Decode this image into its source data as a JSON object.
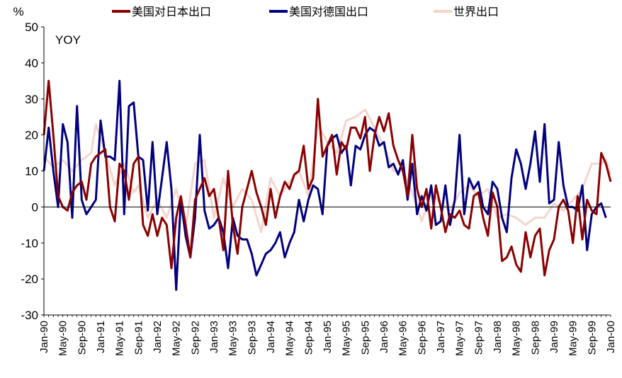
{
  "chart_data": {
    "type": "line",
    "ylabel": "%",
    "annotation": "YOY",
    "ylim": [
      -30,
      50
    ],
    "yticks": [
      "50",
      "40",
      "30",
      "20",
      "10",
      "0",
      "-10",
      "-20",
      "-30"
    ],
    "xtick_labels": [
      "Jan-90",
      "May-90",
      "Sep-90",
      "Jan-91",
      "May-91",
      "Sep-91",
      "Jan-92",
      "May-92",
      "Sep-92",
      "Jan-93",
      "May-93",
      "Sep-93",
      "Jan-94",
      "May-94",
      "Sep-94",
      "Jan-95",
      "May-95",
      "Sep-95",
      "Jan-96",
      "May-96",
      "Sep-96",
      "Jan-97",
      "May-97",
      "Sep-97",
      "Jan-98",
      "May-98",
      "Sep-98",
      "Jan-99",
      "May-99",
      "Sep-99",
      "Jan-00"
    ],
    "legend_position": "top",
    "grid": false,
    "x_start": "Jan-90",
    "x_end": "Jan-00",
    "frequency": "monthly",
    "series": [
      {
        "name": "美国对日本出口",
        "color": "#8b0000",
        "anchors": [
          [
            0,
            20
          ],
          [
            1,
            35
          ],
          [
            2,
            20
          ],
          [
            3,
            3
          ],
          [
            4,
            0
          ],
          [
            5,
            -1
          ],
          [
            6,
            4
          ],
          [
            7,
            6
          ],
          [
            8,
            7
          ],
          [
            9,
            2
          ],
          [
            10,
            12
          ],
          [
            11,
            14
          ],
          [
            12,
            15
          ],
          [
            13,
            16
          ],
          [
            14,
            0
          ],
          [
            15,
            -4
          ],
          [
            16,
            12
          ],
          [
            17,
            10
          ],
          [
            18,
            2
          ],
          [
            19,
            12
          ],
          [
            20,
            14
          ],
          [
            21,
            -5
          ],
          [
            22,
            -8
          ],
          [
            23,
            -2
          ],
          [
            24,
            -8
          ],
          [
            25,
            -3
          ],
          [
            26,
            -5
          ],
          [
            27,
            -17
          ],
          [
            28,
            -3
          ],
          [
            29,
            3
          ],
          [
            30,
            -5
          ],
          [
            31,
            -14
          ],
          [
            32,
            2
          ],
          [
            33,
            5
          ],
          [
            34,
            8
          ],
          [
            35,
            3
          ],
          [
            36,
            5
          ],
          [
            37,
            -3
          ],
          [
            38,
            -12
          ],
          [
            39,
            10
          ],
          [
            40,
            -5
          ],
          [
            41,
            -13
          ],
          [
            42,
            0
          ],
          [
            43,
            5
          ],
          [
            44,
            10
          ],
          [
            45,
            4
          ],
          [
            46,
            0
          ],
          [
            47,
            -5
          ],
          [
            48,
            5
          ],
          [
            49,
            -3
          ],
          [
            50,
            3
          ],
          [
            51,
            7
          ],
          [
            52,
            5
          ],
          [
            53,
            9
          ],
          [
            54,
            10
          ],
          [
            55,
            17
          ],
          [
            56,
            5
          ],
          [
            57,
            8
          ],
          [
            58,
            30
          ],
          [
            59,
            14
          ],
          [
            60,
            17
          ],
          [
            61,
            20
          ],
          [
            62,
            9
          ],
          [
            63,
            18
          ],
          [
            64,
            16
          ],
          [
            65,
            22
          ],
          [
            66,
            22
          ],
          [
            67,
            19
          ],
          [
            68,
            25
          ],
          [
            69,
            10
          ],
          [
            70,
            20
          ],
          [
            71,
            25
          ],
          [
            72,
            21
          ],
          [
            73,
            26
          ],
          [
            74,
            17
          ],
          [
            75,
            13
          ],
          [
            76,
            10
          ],
          [
            77,
            3
          ],
          [
            78,
            20
          ],
          [
            79,
            5
          ],
          [
            80,
            0
          ],
          [
            81,
            5
          ],
          [
            82,
            -6
          ],
          [
            83,
            6
          ],
          [
            84,
            0
          ],
          [
            85,
            -7
          ],
          [
            86,
            -2
          ],
          [
            87,
            -3
          ],
          [
            88,
            -1
          ],
          [
            89,
            -5
          ],
          [
            90,
            -6
          ],
          [
            91,
            3
          ],
          [
            92,
            4
          ],
          [
            93,
            -3
          ],
          [
            94,
            -8
          ],
          [
            95,
            4
          ],
          [
            96,
            0
          ],
          [
            97,
            -15
          ],
          [
            98,
            -14
          ],
          [
            99,
            -11
          ],
          [
            100,
            -16
          ],
          [
            101,
            -18
          ],
          [
            102,
            -7
          ],
          [
            103,
            -14
          ],
          [
            104,
            -8
          ],
          [
            105,
            -6
          ],
          [
            106,
            -19
          ],
          [
            107,
            -12
          ],
          [
            108,
            -9
          ],
          [
            109,
            0
          ],
          [
            110,
            2
          ],
          [
            111,
            -1
          ],
          [
            112,
            -10
          ],
          [
            113,
            3
          ],
          [
            114,
            -9
          ],
          [
            115,
            2
          ],
          [
            116,
            -1
          ],
          [
            117,
            -2
          ],
          [
            118,
            15
          ],
          [
            119,
            12
          ],
          [
            120,
            7
          ]
        ]
      },
      {
        "name": "美国对德国出口",
        "color": "#000080",
        "anchors": [
          [
            0,
            10
          ],
          [
            1,
            22
          ],
          [
            2,
            10
          ],
          [
            3,
            0
          ],
          [
            4,
            23
          ],
          [
            5,
            18
          ],
          [
            6,
            -3
          ],
          [
            7,
            28
          ],
          [
            8,
            2
          ],
          [
            9,
            -2
          ],
          [
            10,
            0
          ],
          [
            11,
            2
          ],
          [
            12,
            24
          ],
          [
            13,
            14
          ],
          [
            14,
            14
          ],
          [
            15,
            13
          ],
          [
            16,
            35
          ],
          [
            17,
            -2
          ],
          [
            18,
            28
          ],
          [
            19,
            29
          ],
          [
            20,
            14
          ],
          [
            21,
            13
          ],
          [
            22,
            -1
          ],
          [
            23,
            18
          ],
          [
            24,
            -2
          ],
          [
            25,
            8
          ],
          [
            26,
            18
          ],
          [
            27,
            5
          ],
          [
            28,
            -23
          ],
          [
            29,
            2
          ],
          [
            30,
            -8
          ],
          [
            31,
            -14
          ],
          [
            32,
            -3
          ],
          [
            33,
            20
          ],
          [
            34,
            -1
          ],
          [
            35,
            -6
          ],
          [
            36,
            -5
          ],
          [
            37,
            -3
          ],
          [
            38,
            -7
          ],
          [
            39,
            -17
          ],
          [
            40,
            -3
          ],
          [
            41,
            -8
          ],
          [
            42,
            -9
          ],
          [
            43,
            -9
          ],
          [
            44,
            -13
          ],
          [
            45,
            -19
          ],
          [
            46,
            -16
          ],
          [
            47,
            -13
          ],
          [
            48,
            -12
          ],
          [
            49,
            -10
          ],
          [
            50,
            -7
          ],
          [
            51,
            -14
          ],
          [
            52,
            -10
          ],
          [
            53,
            -7
          ],
          [
            54,
            2
          ],
          [
            55,
            -4
          ],
          [
            56,
            2
          ],
          [
            57,
            6
          ],
          [
            58,
            5
          ],
          [
            59,
            -2
          ],
          [
            60,
            17
          ],
          [
            61,
            19
          ],
          [
            62,
            20
          ],
          [
            63,
            15
          ],
          [
            64,
            17
          ],
          [
            65,
            6
          ],
          [
            66,
            17
          ],
          [
            67,
            16
          ],
          [
            68,
            20
          ],
          [
            69,
            22
          ],
          [
            70,
            21
          ],
          [
            71,
            17
          ],
          [
            72,
            18
          ],
          [
            73,
            11
          ],
          [
            74,
            12
          ],
          [
            75,
            9
          ],
          [
            76,
            13
          ],
          [
            77,
            2
          ],
          [
            78,
            12
          ],
          [
            79,
            -2
          ],
          [
            80,
            3
          ],
          [
            81,
            -1
          ],
          [
            82,
            6
          ],
          [
            83,
            -5
          ],
          [
            84,
            -4
          ],
          [
            85,
            6
          ],
          [
            86,
            -5
          ],
          [
            87,
            2
          ],
          [
            88,
            20
          ],
          [
            89,
            -2
          ],
          [
            90,
            8
          ],
          [
            91,
            5
          ],
          [
            92,
            7
          ],
          [
            93,
            0
          ],
          [
            94,
            -2
          ],
          [
            95,
            7
          ],
          [
            96,
            5
          ],
          [
            97,
            -3
          ],
          [
            98,
            -7
          ],
          [
            99,
            8
          ],
          [
            100,
            16
          ],
          [
            101,
            12
          ],
          [
            102,
            5
          ],
          [
            103,
            12
          ],
          [
            104,
            21
          ],
          [
            105,
            7
          ],
          [
            106,
            23
          ],
          [
            107,
            1
          ],
          [
            108,
            2
          ],
          [
            109,
            18
          ],
          [
            110,
            6
          ],
          [
            111,
            0
          ],
          [
            112,
            0
          ],
          [
            113,
            -1
          ],
          [
            114,
            6
          ],
          [
            115,
            -12
          ],
          [
            116,
            -2
          ],
          [
            117,
            0
          ],
          [
            118,
            1
          ],
          [
            119,
            -3
          ]
        ]
      },
      {
        "name": "世界出口",
        "color": "#f5d5cc",
        "anchors": [
          [
            0,
            14
          ],
          [
            2,
            11
          ],
          [
            4,
            13
          ],
          [
            6,
            10
          ],
          [
            8,
            13
          ],
          [
            10,
            15
          ],
          [
            11,
            23
          ],
          [
            13,
            15
          ],
          [
            15,
            6
          ],
          [
            17,
            12
          ],
          [
            19,
            4
          ],
          [
            20,
            6
          ],
          [
            22,
            -3
          ],
          [
            24,
            2
          ],
          [
            26,
            -3
          ],
          [
            28,
            5
          ],
          [
            30,
            -6
          ],
          [
            32,
            12
          ],
          [
            34,
            13
          ],
          [
            36,
            -3
          ],
          [
            38,
            8
          ],
          [
            40,
            0
          ],
          [
            42,
            5
          ],
          [
            44,
            2
          ],
          [
            46,
            -7
          ],
          [
            48,
            8
          ],
          [
            50,
            3
          ],
          [
            52,
            7
          ],
          [
            54,
            10
          ],
          [
            56,
            3
          ],
          [
            58,
            23
          ],
          [
            60,
            18
          ],
          [
            62,
            15
          ],
          [
            64,
            24
          ],
          [
            66,
            25
          ],
          [
            68,
            27
          ],
          [
            70,
            22
          ],
          [
            72,
            17
          ],
          [
            74,
            10
          ],
          [
            76,
            10
          ],
          [
            78,
            4
          ],
          [
            80,
            -4
          ],
          [
            82,
            4
          ],
          [
            84,
            1
          ],
          [
            86,
            -1
          ],
          [
            88,
            4
          ],
          [
            90,
            6
          ],
          [
            92,
            3
          ],
          [
            94,
            5
          ],
          [
            96,
            -3
          ],
          [
            98,
            -2
          ],
          [
            100,
            -3
          ],
          [
            102,
            -5
          ],
          [
            104,
            -3
          ],
          [
            106,
            -3
          ],
          [
            108,
            1
          ],
          [
            110,
            -1
          ],
          [
            112,
            2
          ],
          [
            114,
            5
          ],
          [
            116,
            12
          ],
          [
            118,
            12
          ],
          [
            119,
            13
          ],
          [
            120,
            9
          ]
        ]
      }
    ]
  }
}
